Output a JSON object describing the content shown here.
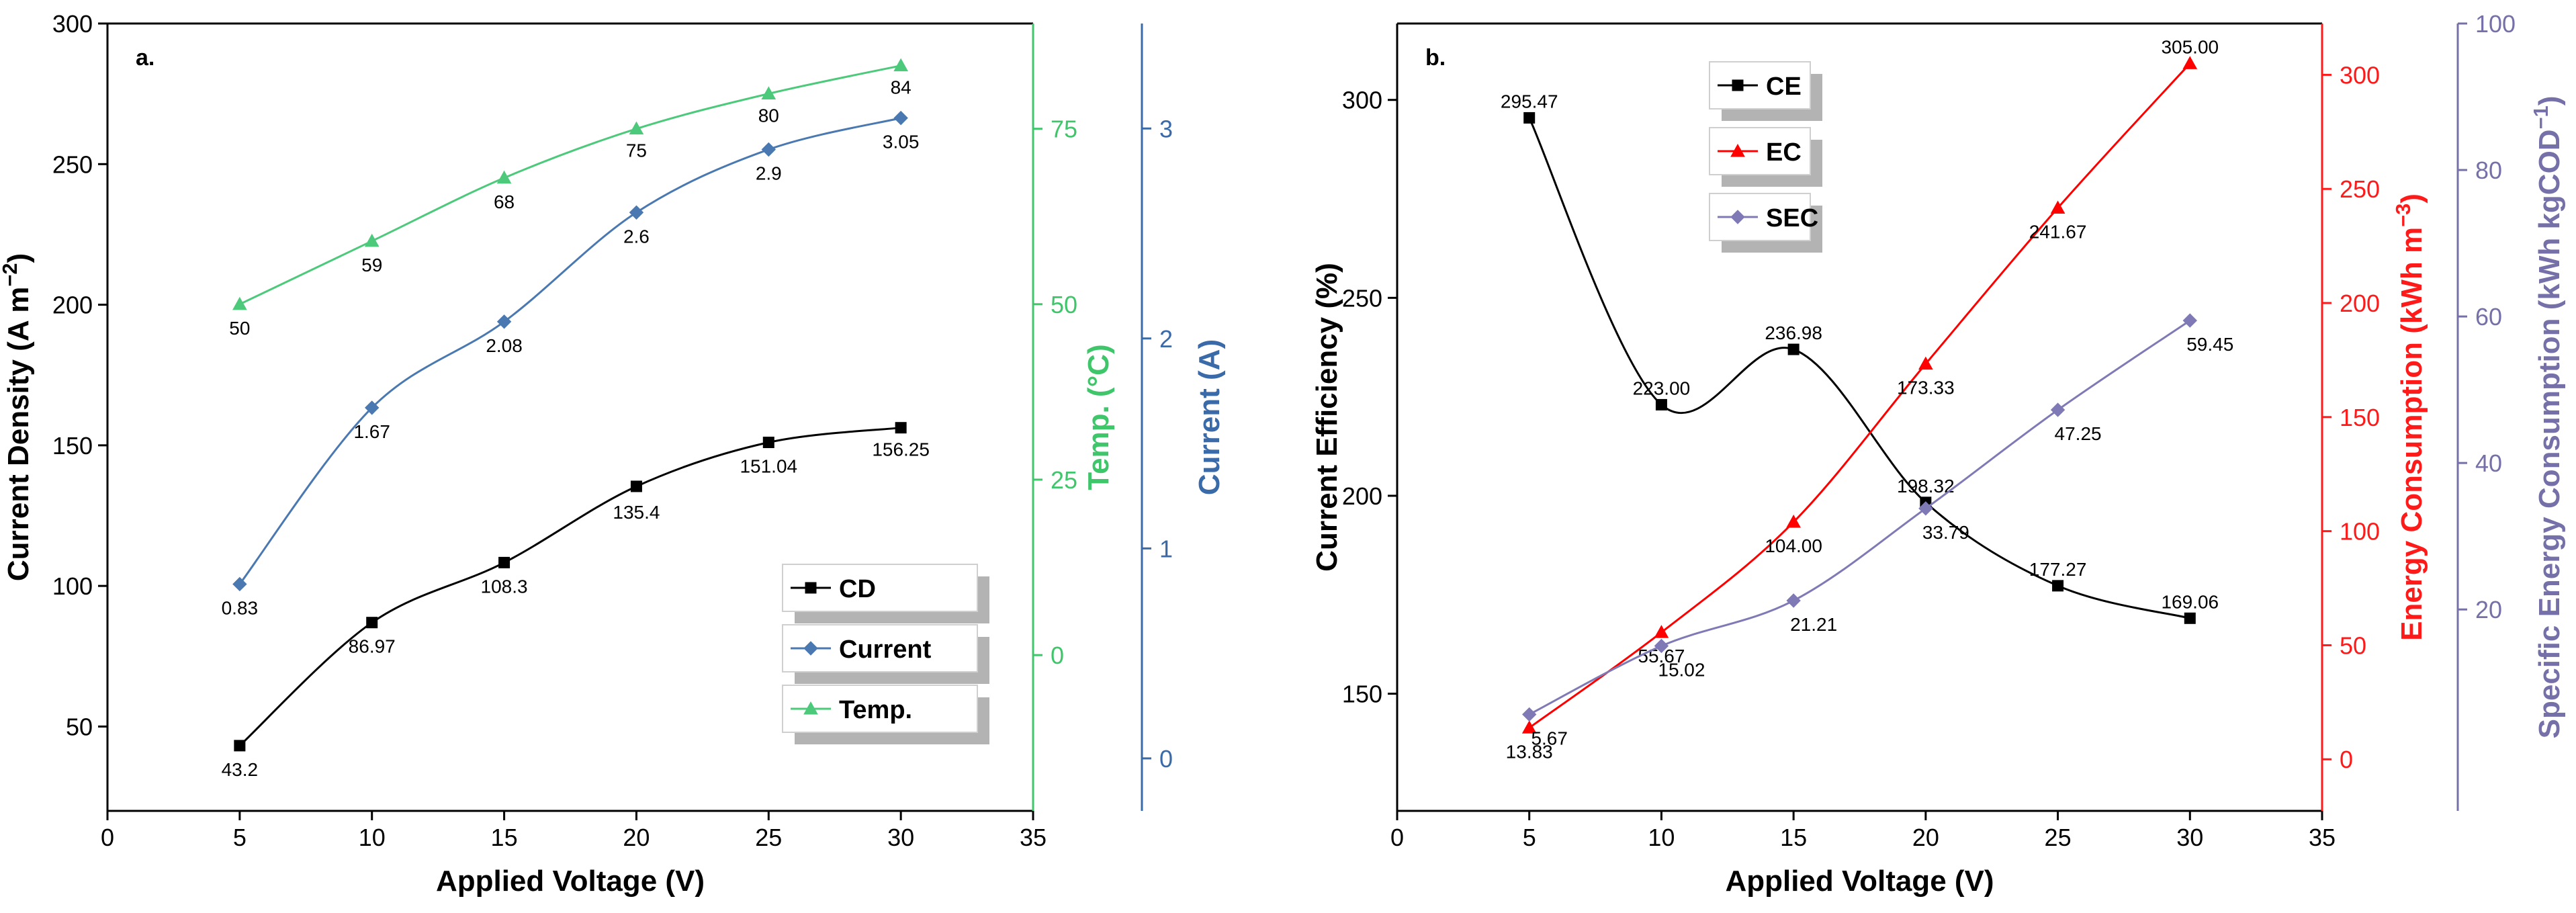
{
  "chart_data": [
    {
      "panel": "a.",
      "type": "line",
      "xlabel": "Applied Voltage (V)",
      "xlim": [
        0,
        35
      ],
      "x_ticks": [
        0,
        5,
        10,
        15,
        20,
        25,
        30,
        35
      ],
      "x": [
        5,
        10,
        15,
        20,
        25,
        30
      ],
      "axes": {
        "left": {
          "label_main": "Current Density (A m",
          "label_sup": "−2",
          "label_end": ")",
          "ylim": [
            20,
            300
          ],
          "ticks": [
            50,
            100,
            150,
            200,
            250,
            300
          ],
          "color": "#000000"
        },
        "right1": {
          "label": "Temp. (°C)",
          "ylim": [
            -22.2,
            90
          ],
          "ticks": [
            0,
            25,
            50,
            75
          ],
          "color": "#3fc66a"
        },
        "right2": {
          "label": "Current (A)",
          "ylim": [
            -0.25,
            3.5
          ],
          "ticks": [
            0,
            1,
            2,
            3
          ],
          "color": "#3a6aa8"
        }
      },
      "series": [
        {
          "name": "CD",
          "axis": "left",
          "color": "#000000",
          "marker": "square",
          "values": [
            43.2,
            86.97,
            108.3,
            135.4,
            151.04,
            156.25
          ],
          "labels": [
            "43.2",
            "86.97",
            "108.3",
            "135.4",
            "151.04",
            "156.25"
          ]
        },
        {
          "name": "Current",
          "axis": "right2",
          "color": "#4a78b0",
          "marker": "diamond",
          "values": [
            0.83,
            1.67,
            2.08,
            2.6,
            2.9,
            3.05
          ],
          "labels": [
            "0.83",
            "1.67",
            "2.08",
            "2.6",
            "2.9",
            "3.05"
          ]
        },
        {
          "name": "Temp.",
          "axis": "right1",
          "color": "#4cc97a",
          "marker": "triangle",
          "values": [
            50,
            59,
            68,
            75,
            80,
            84
          ],
          "labels": [
            "50",
            "59",
            "68",
            "75",
            "80",
            "84"
          ]
        }
      ],
      "legend": {
        "placement": "bottom-right",
        "entries": [
          "CD",
          "Current",
          "Temp."
        ]
      }
    },
    {
      "panel": "b.",
      "type": "line",
      "xlabel": "Applied Voltage (V)",
      "xlim": [
        0,
        35
      ],
      "x_ticks": [
        0,
        5,
        10,
        15,
        20,
        25,
        30,
        35
      ],
      "x": [
        5,
        10,
        15,
        20,
        25,
        30
      ],
      "axes": {
        "left": {
          "label": "Current Efficiency (%)",
          "ylim": [
            120.4,
            319.3
          ],
          "ticks": [
            150,
            200,
            250,
            300
          ],
          "color": "#000000"
        },
        "right1": {
          "label_main": "Energy Consumption (kWh m",
          "label_sup": "−3",
          "label_end": ")",
          "ylim": [
            -22.6,
            322.5
          ],
          "ticks": [
            0,
            50,
            100,
            150,
            200,
            250,
            300
          ],
          "color": "#ff1a1a"
        },
        "right2": {
          "label_main": "Specific Energy Consumption (kWh kgCOD",
          "label_sup": "−1",
          "label_end": ")",
          "ylim": [
            -7.5,
            100
          ],
          "ticks": [
            20,
            40,
            60,
            80,
            100
          ],
          "color": "#7570a8"
        }
      },
      "series": [
        {
          "name": "CE",
          "axis": "left",
          "color": "#000000",
          "marker": "square",
          "values": [
            295.47,
            223.0,
            236.98,
            198.32,
            177.27,
            169.06
          ],
          "labels": [
            "295.47",
            "223.00",
            "236.98",
            "198.32",
            "177.27",
            "169.06"
          ]
        },
        {
          "name": "EC",
          "axis": "right1",
          "color": "#ff0000",
          "marker": "triangle",
          "values": [
            13.83,
            55.67,
            104.0,
            173.33,
            241.67,
            305.0
          ],
          "labels": [
            "13.83",
            "55.67",
            "104.00",
            "173.33",
            "241.67",
            "305.00"
          ]
        },
        {
          "name": "SEC",
          "axis": "right2",
          "color": "#7f7ab5",
          "marker": "diamond",
          "values": [
            5.67,
            15.02,
            21.21,
            33.79,
            47.25,
            59.45
          ],
          "labels": [
            "5.67",
            "15.02",
            "21.21",
            "33.79",
            "47.25",
            "59.45"
          ]
        }
      ],
      "legend": {
        "placement": "top-left",
        "entries": [
          "CE",
          "EC",
          "SEC"
        ]
      }
    }
  ]
}
